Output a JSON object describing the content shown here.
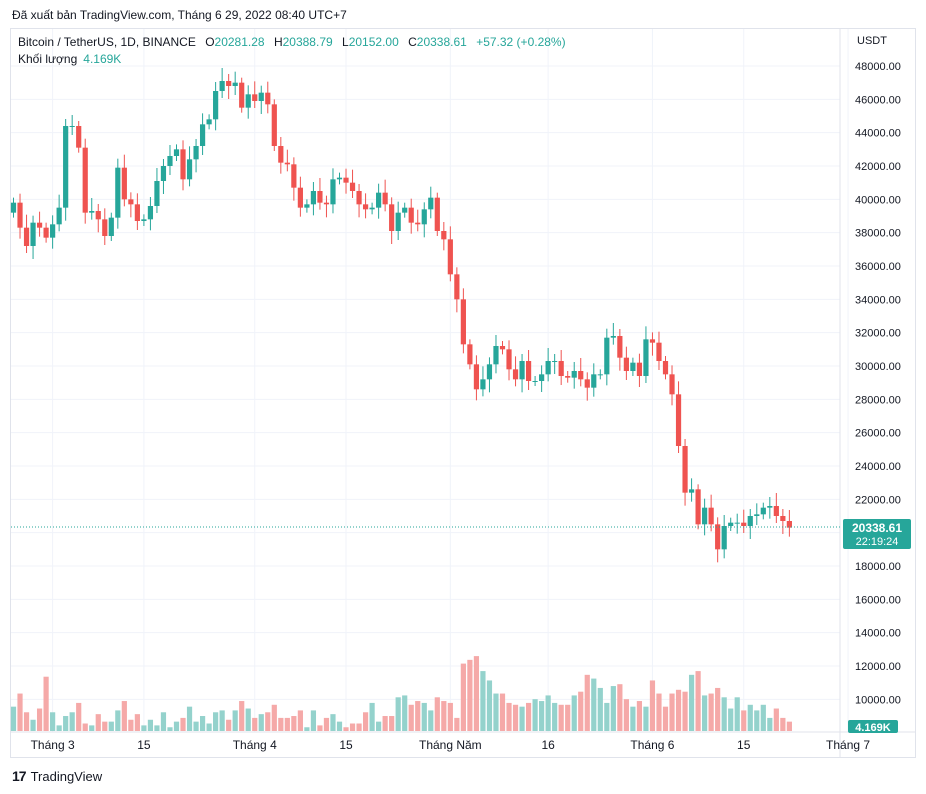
{
  "header": {
    "published_text": "Đã xuất bản TradingView.com, Tháng 6 29, 2022 08:40 UTC+7"
  },
  "legend": {
    "symbol": "Bitcoin / TetherUS, 1D, BINANCE",
    "open_label": "O",
    "open": "20281.28",
    "high_label": "H",
    "high": "20388.79",
    "low_label": "L",
    "low": "20152.00",
    "close_label": "C",
    "close": "20338.61",
    "change": "+57.32 (+0.28%)",
    "volume_label": "Khối lượng",
    "volume": "4.169K"
  },
  "price_badge": {
    "price": "20338.61",
    "countdown": "22:19:24"
  },
  "volume_badge": "4.169K",
  "brand": {
    "logo_mark": "17",
    "name": "TradingView"
  },
  "colors": {
    "up": "#26a69a",
    "down": "#ef5350",
    "up_volume": "#94d2cc",
    "down_volume": "#f5a9a8",
    "grid": "#f0f3fa",
    "text": "#131722"
  },
  "chart_data": {
    "type": "candlestick",
    "currency_label": "USDT",
    "y_ticks": [
      "48000.00",
      "46000.00",
      "44000.00",
      "42000.00",
      "40000.00",
      "38000.00",
      "36000.00",
      "34000.00",
      "32000.00",
      "30000.00",
      "28000.00",
      "26000.00",
      "24000.00",
      "22000.00",
      "20000.00",
      "18000.00",
      "16000.00",
      "14000.00",
      "12000.00",
      "10000.00"
    ],
    "x_ticks": [
      {
        "label": "Tháng 3",
        "index": 6
      },
      {
        "label": "15",
        "index": 20
      },
      {
        "label": "Tháng 4",
        "index": 37
      },
      {
        "label": "15",
        "index": 51
      },
      {
        "label": "Tháng Năm",
        "index": 67
      },
      {
        "label": "16",
        "index": 82
      },
      {
        "label": "Tháng 6",
        "index": 98
      },
      {
        "label": "15",
        "index": 112
      },
      {
        "label": "Tháng 7",
        "index": 128
      }
    ],
    "ylim": [
      9600,
      48800
    ],
    "price_line": 20338.61,
    "closes": [
      39800,
      38300,
      37200,
      38600,
      38300,
      37700,
      38500,
      39500,
      44400,
      44400,
      43100,
      39200,
      39300,
      38800,
      37800,
      38900,
      41900,
      40000,
      39700,
      38700,
      38800,
      39600,
      41100,
      42000,
      42600,
      43000,
      41200,
      42400,
      43200,
      44500,
      44800,
      46500,
      47100,
      46800,
      47000,
      45500,
      46300,
      45900,
      46400,
      45700,
      43200,
      42200,
      42100,
      40700,
      39500,
      39700,
      40500,
      39800,
      39700,
      41200,
      41300,
      41000,
      40500,
      39700,
      39400,
      39500,
      40400,
      39700,
      38100,
      39200,
      39500,
      38600,
      38500,
      39400,
      40100,
      38100,
      37600,
      35500,
      34000,
      31300,
      30100,
      28600,
      29200,
      30100,
      31200,
      31000,
      29800,
      29200,
      30300,
      29100,
      29100,
      29500,
      30300,
      30300,
      29400,
      29300,
      29700,
      29200,
      28700,
      29500,
      29500,
      31700,
      31800,
      30500,
      29700,
      30200,
      29400,
      31600,
      31400,
      30300,
      29500,
      28300,
      25200,
      22400,
      22600,
      20500,
      21500,
      20500,
      19000,
      20400,
      20600,
      20600,
      20400,
      21000,
      21100,
      21500,
      21600,
      21000,
      20700,
      20300
    ],
    "volumes": [
      10900,
      11600,
      10600,
      10200,
      10800,
      12500,
      10600,
      9900,
      10400,
      10600,
      11100,
      10000,
      9900,
      10500,
      10100,
      10100,
      10700,
      11200,
      10200,
      10500,
      9900,
      10200,
      9900,
      10600,
      9800,
      10100,
      10300,
      10900,
      10100,
      10400,
      10000,
      10600,
      10700,
      10200,
      10700,
      11200,
      10800,
      10300,
      10500,
      10600,
      11000,
      10300,
      10300,
      10400,
      10700,
      9800,
      10700,
      9900,
      10300,
      10500,
      10100,
      9800,
      10000,
      10000,
      10600,
      11100,
      10100,
      10400,
      10400,
      11400,
      11500,
      11000,
      11200,
      11100,
      10700,
      11400,
      11200,
      11100,
      10300,
      13200,
      13400,
      13600,
      12800,
      12300,
      11600,
      11600,
      11100,
      11000,
      10900,
      11100,
      11300,
      11200,
      11500,
      11100,
      11000,
      11000,
      11500,
      11700,
      12600,
      12400,
      11900,
      11100,
      12000,
      12100,
      11300,
      10900,
      11200,
      10900,
      12300,
      11600,
      10900,
      11600,
      11800,
      11700,
      12600,
      12800,
      11500,
      11600,
      11900,
      11400,
      10800,
      11400,
      10700,
      11000,
      10700,
      11000,
      10300,
      10800,
      10300,
      10100
    ],
    "volume_scale_note": "volumes in approximate relative units",
    "current_volume": "4.169K"
  }
}
